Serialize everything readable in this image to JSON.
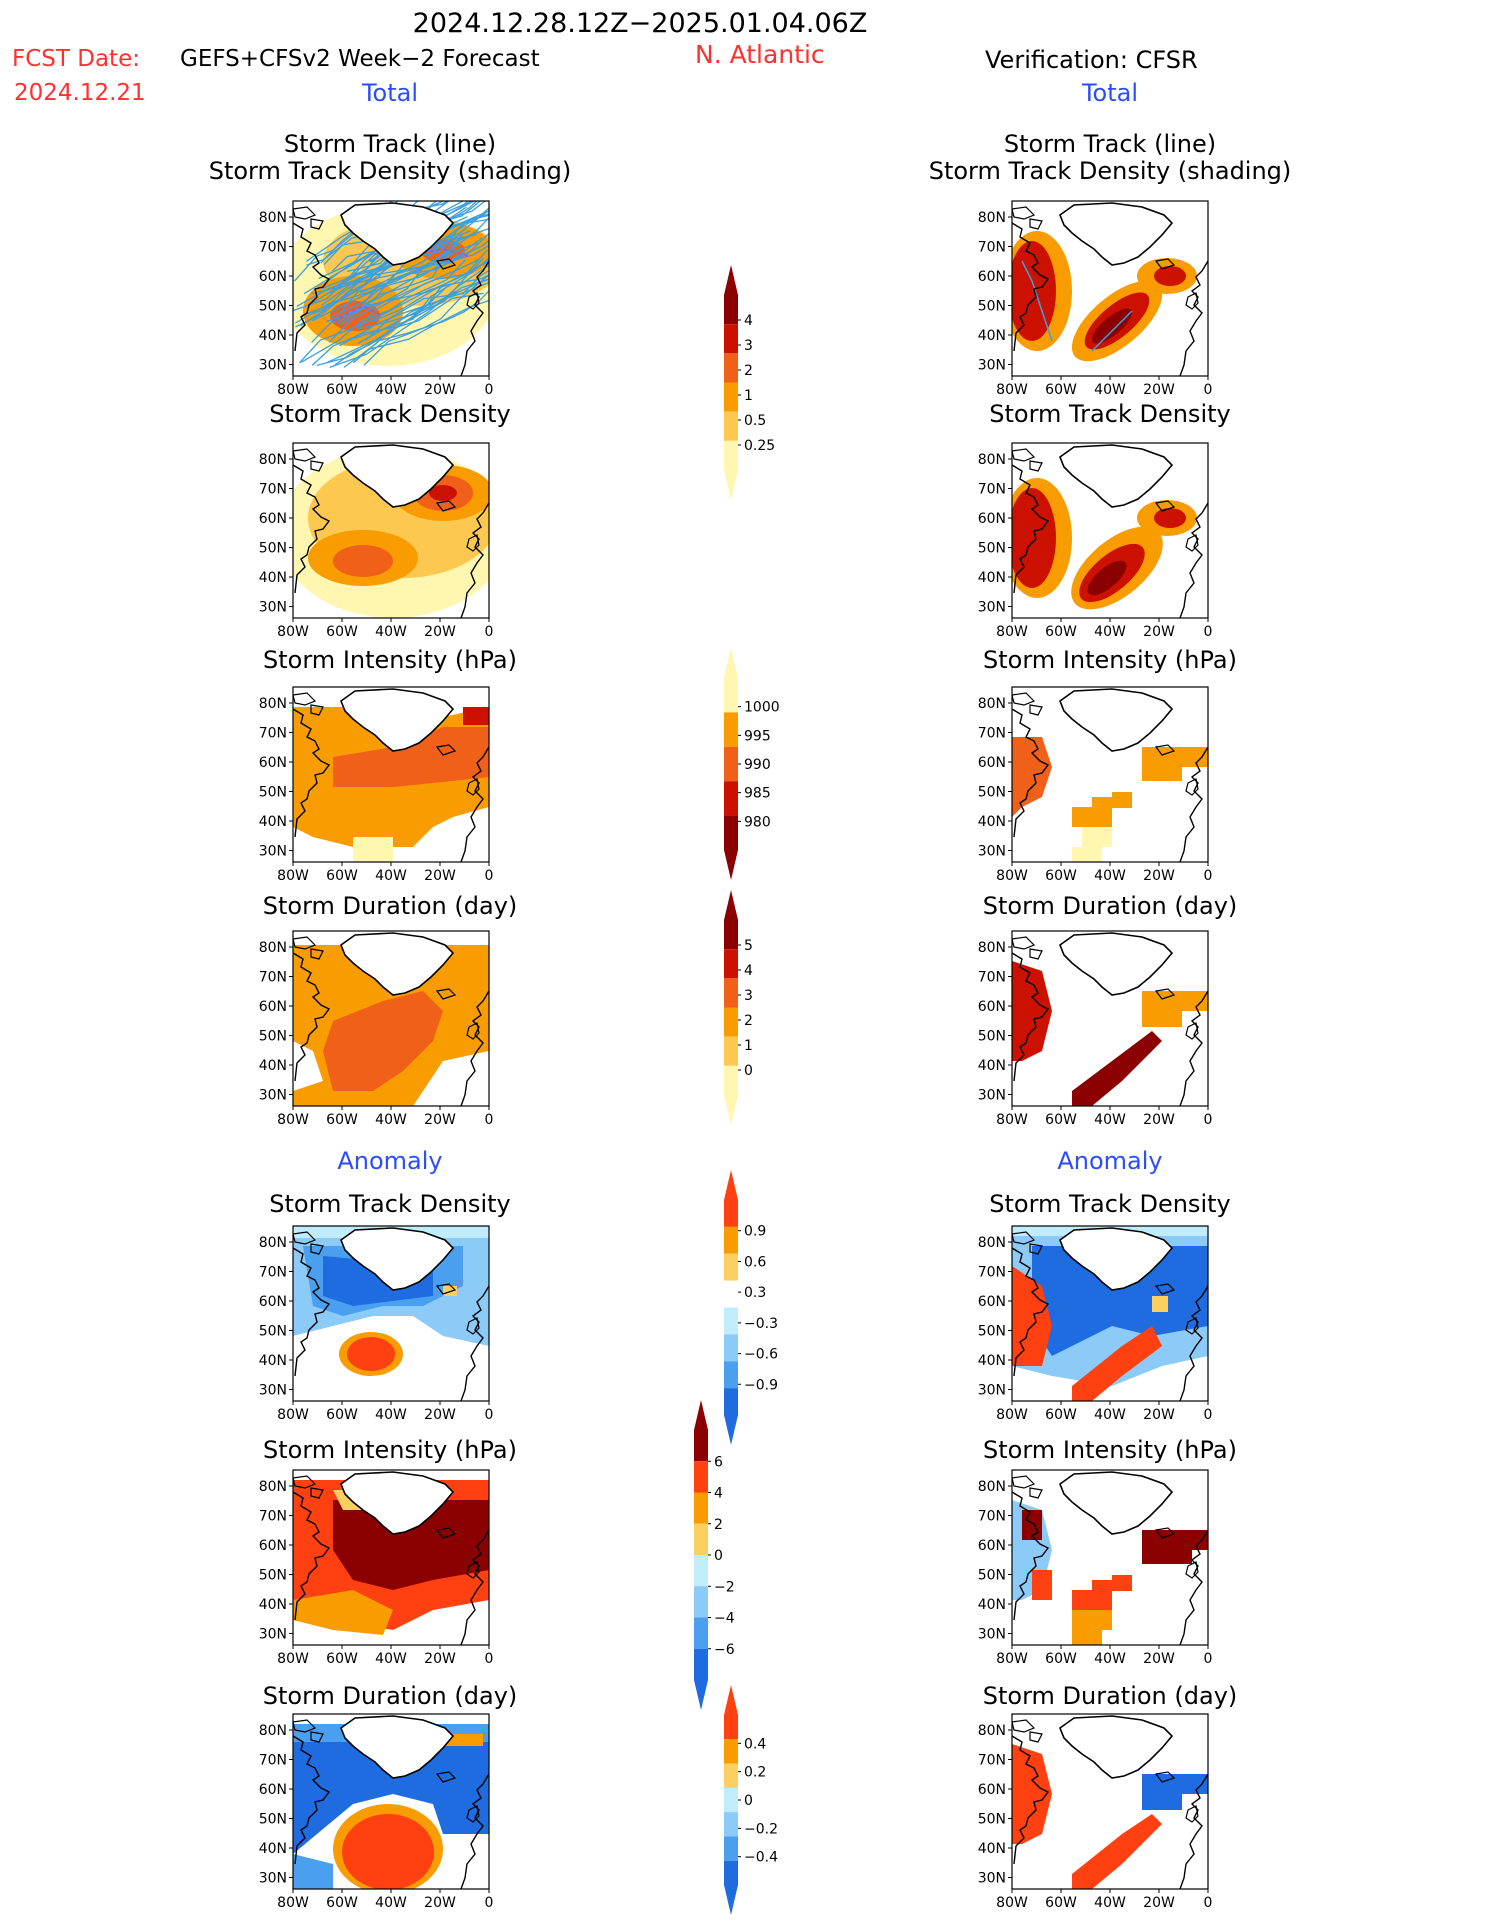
{
  "header": {
    "date_range": "2024.12.28.12Z−2025.01.04.06Z",
    "fcst_label": "FCST Date:",
    "fcst_model": "GEFS+CFSv2 Week−2 Forecast",
    "fcst_date": "2024.12.21",
    "region": "N. Atlantic",
    "verification": "Verification: CFSR"
  },
  "sections": {
    "total": "Total",
    "anomaly": "Anomaly"
  },
  "panel_titles": {
    "track_line": "Storm Track (line)",
    "track_shading": "Storm Track Density (shading)",
    "density": "Storm Track Density",
    "intensity": "Storm Intensity (hPa)",
    "duration": "Storm Duration (day)"
  },
  "axes": {
    "lat_labels": [
      "80N",
      "70N",
      "60N",
      "50N",
      "40N",
      "30N"
    ],
    "lon_labels": [
      "80W",
      "60W",
      "40W",
      "20W",
      "0"
    ]
  },
  "colorbars": [
    {
      "labels": [
        "4",
        "3",
        "2",
        "1",
        "0.5",
        "0.25"
      ],
      "colors": [
        "#8b0000",
        "#cc1100",
        "#f06018",
        "#f89c00",
        "#fcc850",
        "#fff6b0"
      ]
    },
    {
      "labels": [
        "1000",
        "995",
        "990",
        "985",
        "980"
      ],
      "colors": [
        "#fff6b0",
        "#f89c00",
        "#f06018",
        "#cc1100",
        "#8b0000"
      ]
    },
    {
      "labels": [
        "5",
        "4",
        "3",
        "2",
        "1",
        "0"
      ],
      "colors": [
        "#8b0000",
        "#cc1100",
        "#f06018",
        "#f89c00",
        "#fcc850",
        "#fff6b0"
      ]
    },
    {
      "labels": [
        "0.9",
        "0.6",
        "0.3",
        "−0.3",
        "−0.6",
        "−0.9"
      ],
      "colors": [
        "#ff4010",
        "#f89c00",
        "#fcd060",
        "#ffffff",
        "#c0ecfc",
        "#8ccaf8",
        "#4aa0ee",
        "#1e6ce0"
      ]
    },
    {
      "labels": [
        "6",
        "4",
        "2",
        "0",
        "−2",
        "−4",
        "−6"
      ],
      "colors": [
        "#8b0000",
        "#ff4010",
        "#f89c00",
        "#fcd060",
        "#c0ecfc",
        "#8ccaf8",
        "#4aa0ee",
        "#1e6ce0"
      ]
    },
    {
      "labels": [
        "0.4",
        "0.2",
        "0",
        "−0.2",
        "−0.4"
      ],
      "colors": [
        "#ff4010",
        "#f89c00",
        "#fcd060",
        "#c0ecfc",
        "#8ccaf8",
        "#4aa0ee",
        "#1e6ce0"
      ]
    }
  ],
  "colors": {
    "title_red": "#ff3030",
    "section_blue": "#2b4cff",
    "track_blue": "#3aa0e0",
    "track_purple": "#a05ad0",
    "land_line": "#000000"
  }
}
